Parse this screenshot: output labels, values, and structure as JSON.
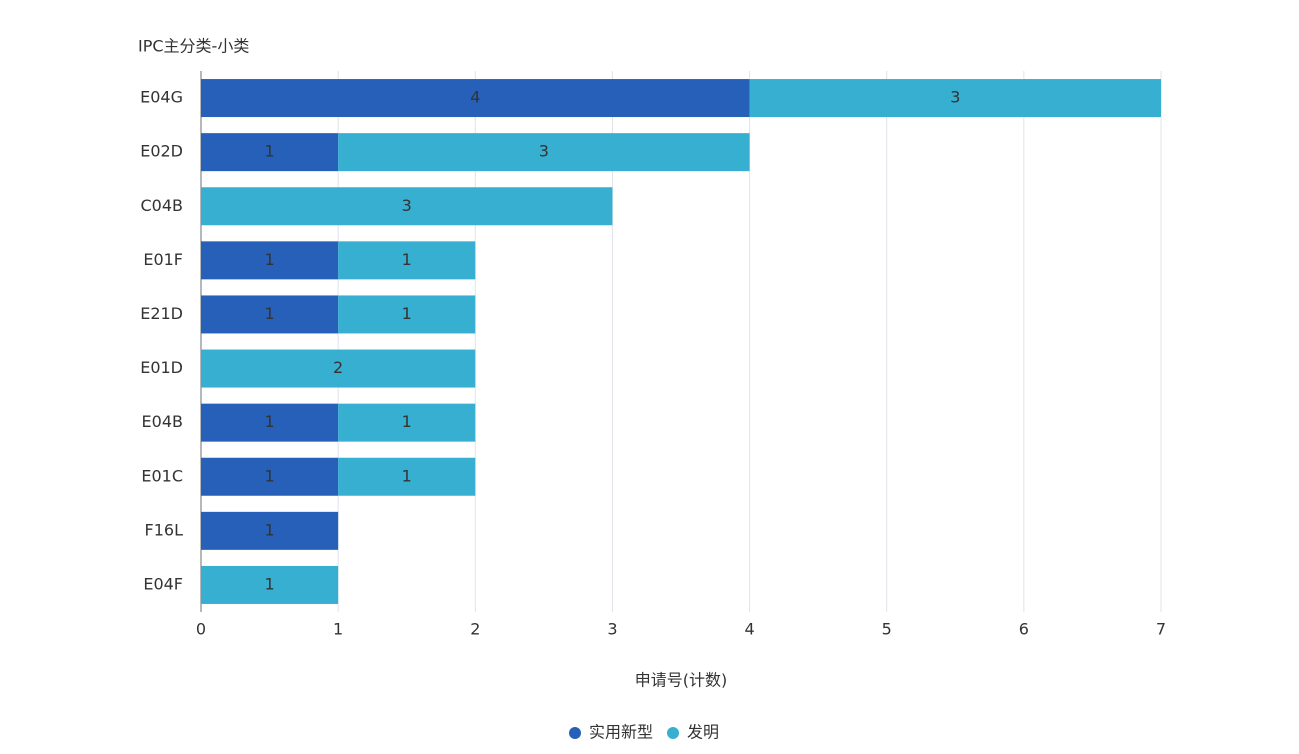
{
  "chart_data": {
    "type": "stacked-bar-horizontal",
    "y_axis_label": "IPC主分类-小类",
    "x_axis_label": "申请号(计数)",
    "categories": [
      "E04G",
      "E02D",
      "C04B",
      "E01F",
      "E21D",
      "E01D",
      "E04B",
      "E01C",
      "F16L",
      "E04F"
    ],
    "series": [
      {
        "name": "实用新型",
        "color": "#2660b8",
        "values": [
          4,
          1,
          null,
          1,
          1,
          null,
          1,
          1,
          1,
          null
        ]
      },
      {
        "name": "发明",
        "color": "#37afd0",
        "values": [
          3,
          3,
          3,
          1,
          1,
          2,
          1,
          1,
          null,
          1
        ]
      }
    ],
    "xlim": [
      0,
      7
    ],
    "xticks": [
      0,
      1,
      2,
      3,
      4,
      5,
      6,
      7
    ],
    "grid": true,
    "legend": "bottom"
  }
}
